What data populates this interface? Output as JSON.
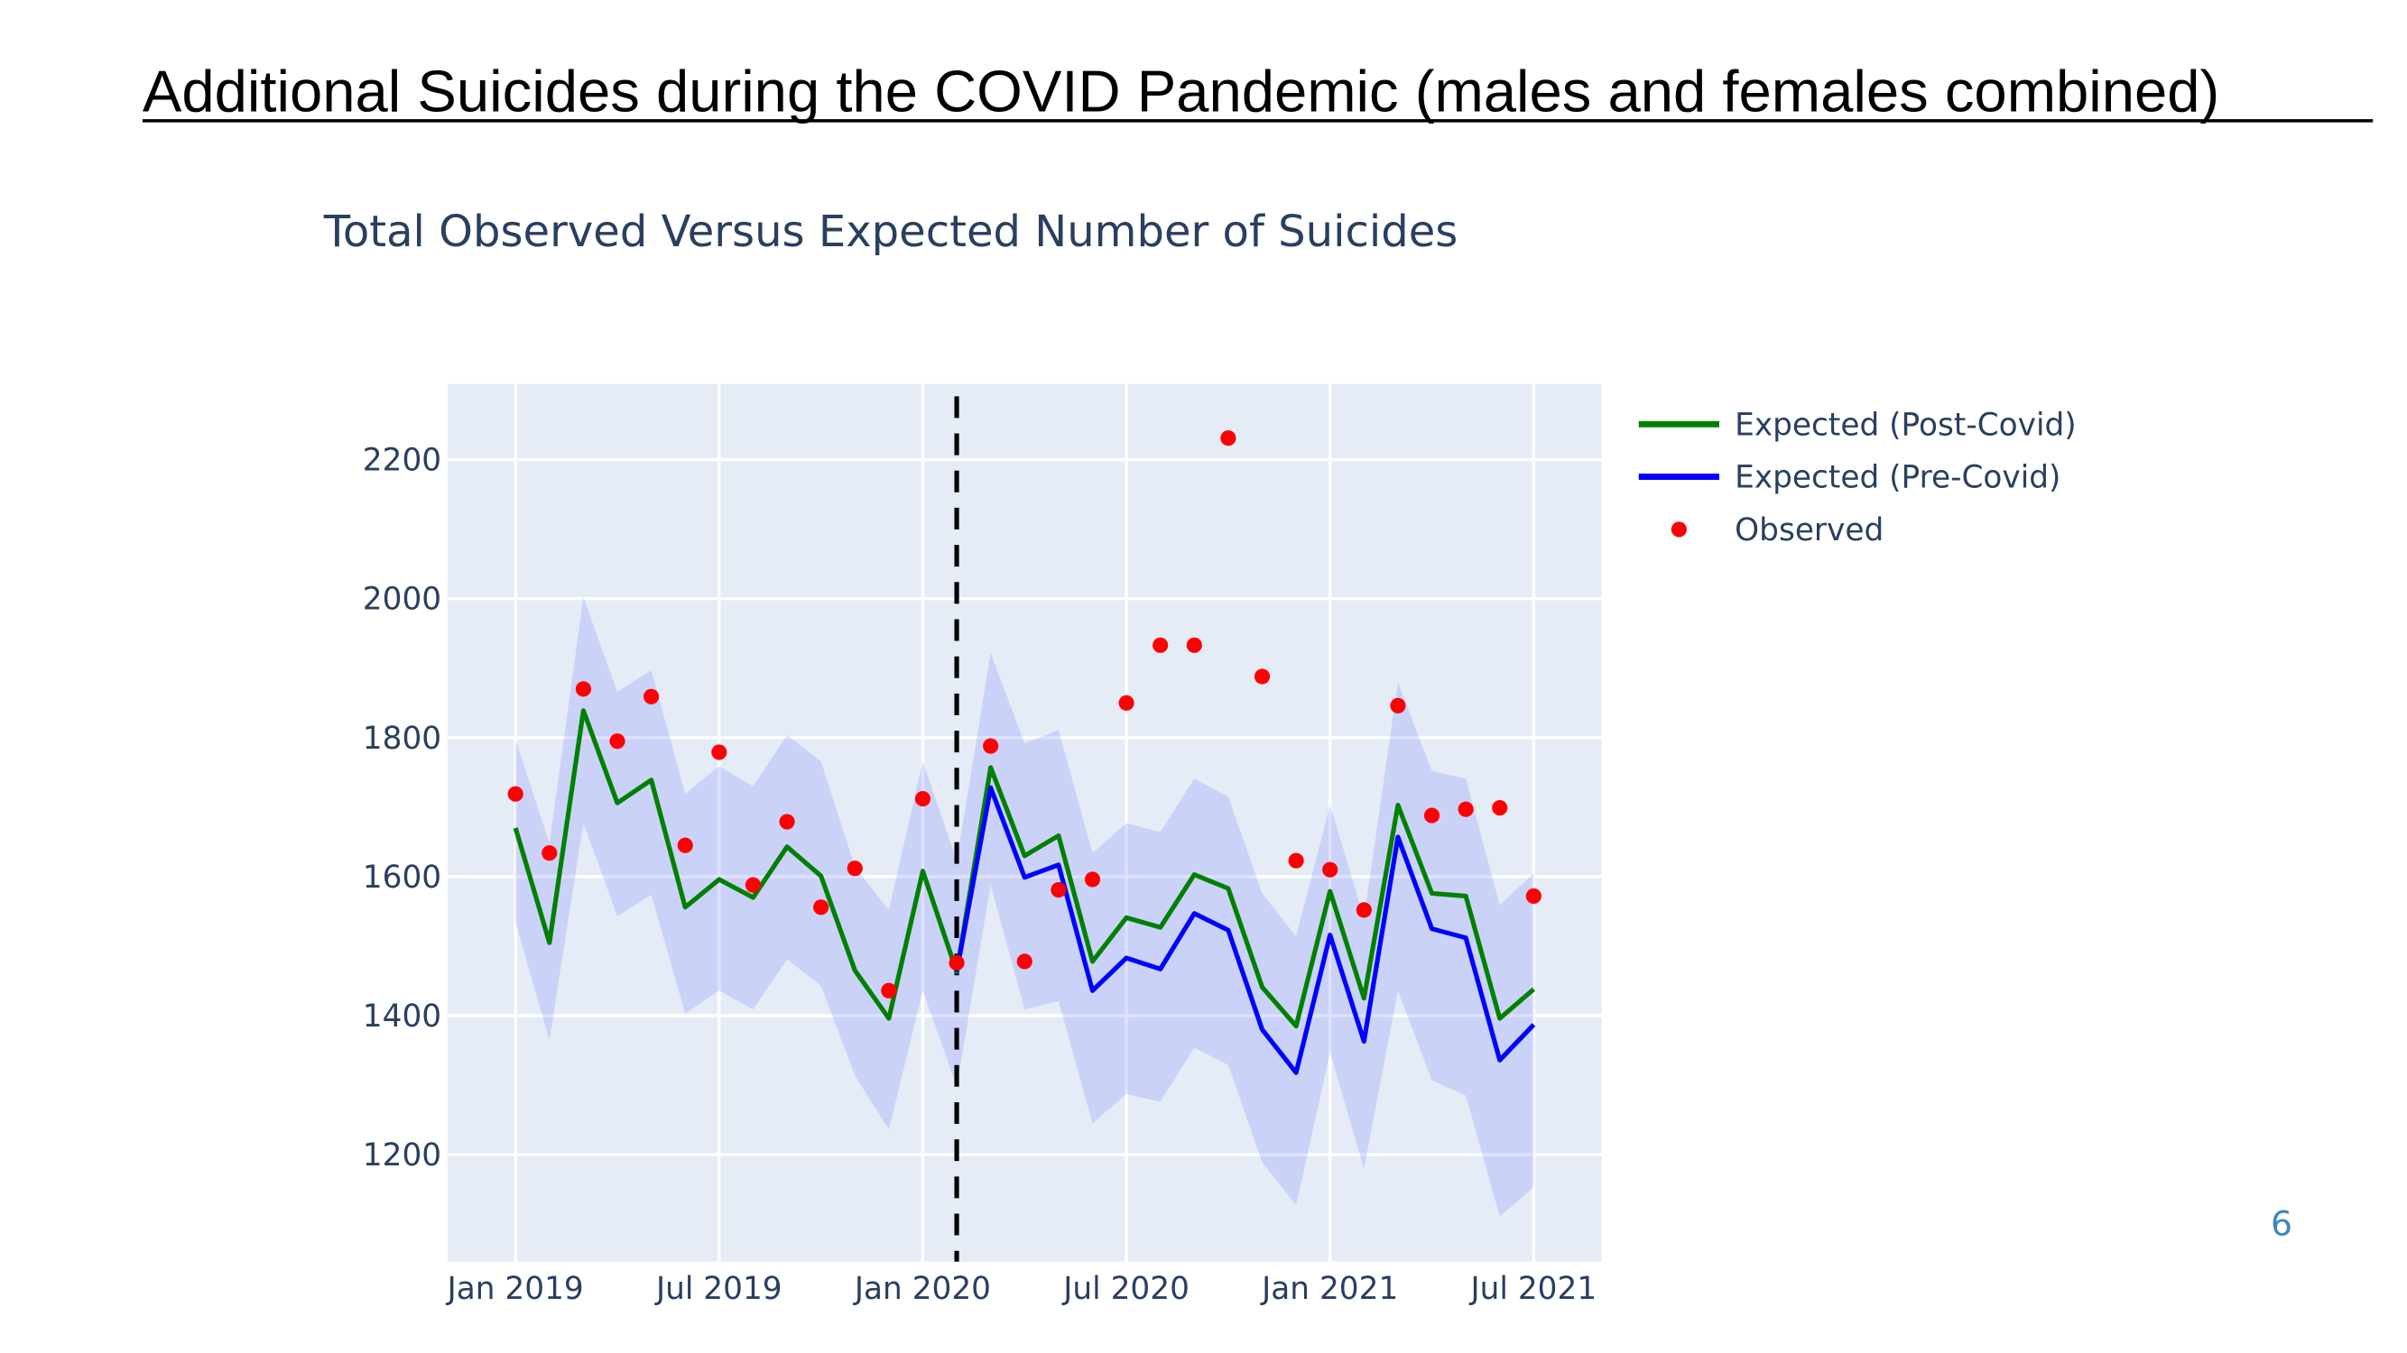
{
  "page_title": "Additional Suicides during the COVID Pandemic (males and females combined)",
  "page_number": "6",
  "chart_data": {
    "type": "line",
    "title": "Total Observed Versus Expected Number of Suicides",
    "x": [
      "2019-01",
      "2019-02",
      "2019-03",
      "2019-04",
      "2019-05",
      "2019-06",
      "2019-07",
      "2019-08",
      "2019-09",
      "2019-10",
      "2019-11",
      "2019-12",
      "2020-01",
      "2020-02",
      "2020-03",
      "2020-04",
      "2020-05",
      "2020-06",
      "2020-07",
      "2020-08",
      "2020-09",
      "2020-10",
      "2020-11",
      "2020-12",
      "2021-01",
      "2021-02",
      "2021-03",
      "2021-04",
      "2021-05",
      "2021-06",
      "2021-07"
    ],
    "series": [
      {
        "name": "Expected (Post-Covid)",
        "color": "#008000",
        "mode": "lines",
        "values": [
          1670,
          1505,
          1839,
          1706,
          1739,
          1556,
          1596,
          1570,
          1643,
          1601,
          1465,
          1396,
          1608,
          1463,
          1757,
          1630,
          1659,
          1478,
          1541,
          1527,
          1603,
          1583,
          1441,
          1385,
          1579,
          1425,
          1703,
          1576,
          1572,
          1396,
          1438
        ]
      },
      {
        "name": "Expected (Pre-Covid)",
        "color": "#0000ff",
        "mode": "lines",
        "values": [
          null,
          null,
          null,
          null,
          null,
          null,
          null,
          null,
          null,
          null,
          null,
          null,
          null,
          1463,
          1728,
          1599,
          1617,
          1436,
          1483,
          1467,
          1547,
          1523,
          1380,
          1318,
          1516,
          1363,
          1657,
          1525,
          1512,
          1336,
          1387
        ]
      },
      {
        "name": "Observed",
        "color": "#ff0000",
        "mode": "markers",
        "values": [
          1719,
          1634,
          1870,
          1795,
          1859,
          1645,
          1779,
          1588,
          1679,
          1556,
          1612,
          1436,
          1712,
          1476,
          1788,
          1478,
          1581,
          1596,
          1850,
          1933,
          1933,
          2231,
          1888,
          1623,
          1610,
          1552,
          1846,
          1688,
          1697,
          1699,
          1572
        ]
      }
    ],
    "band": {
      "color": "rgba(110,120,255,0.22)",
      "upper": [
        1797,
        1648,
        2002,
        1866,
        1897,
        1719,
        1759,
        1730,
        1804,
        1766,
        1614,
        1552,
        1766,
        1623,
        1922,
        1792,
        1811,
        1634,
        1677,
        1664,
        1741,
        1715,
        1576,
        1514,
        1703,
        1541,
        1879,
        1752,
        1741,
        1559,
        1605
      ],
      "lower": [
        1534,
        1365,
        1677,
        1543,
        1574,
        1403,
        1436,
        1409,
        1481,
        1443,
        1314,
        1236,
        1436,
        1298,
        1588,
        1409,
        1421,
        1245,
        1287,
        1276,
        1354,
        1329,
        1189,
        1127,
        1347,
        1180,
        1436,
        1307,
        1285,
        1111,
        1153
      ]
    },
    "vline": {
      "x": "2020-02",
      "color": "#000000",
      "style": "dashed"
    },
    "xlim": [
      "2018-11",
      "2021-09"
    ],
    "xticks": [
      {
        "value": "2019-01",
        "label": "Jan 2019"
      },
      {
        "value": "2019-07",
        "label": "Jul 2019"
      },
      {
        "value": "2020-01",
        "label": "Jan 2020"
      },
      {
        "value": "2020-07",
        "label": "Jul 2020"
      },
      {
        "value": "2021-01",
        "label": "Jan 2021"
      },
      {
        "value": "2021-07",
        "label": "Jul 2021"
      }
    ],
    "ylim": [
      1046,
      2309
    ],
    "yticks": [
      1200,
      1400,
      1600,
      1800,
      2000,
      2200
    ],
    "grid": true,
    "legend": "right",
    "plot_background": "#e5ecf6"
  }
}
